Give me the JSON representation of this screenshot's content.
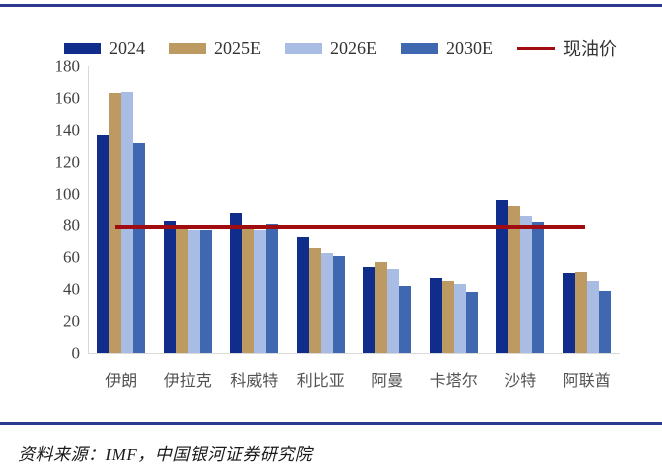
{
  "source_note": {
    "text": "资料来源：IMF，中国银河证券研究院"
  },
  "colors": {
    "rule_navy": "#2b3a8e",
    "axis_gray": "#d9d9d9",
    "tick_text": "#404040",
    "category_text": "#525252",
    "legend_text": "#333333"
  },
  "chart_data": {
    "type": "bar",
    "title": "",
    "xlabel": "",
    "ylabel": "",
    "categories": [
      "伊朗",
      "伊拉克",
      "科威特",
      "利比亚",
      "阿曼",
      "卡塔尔",
      "沙特",
      "阿联酋"
    ],
    "series": [
      {
        "name": "2024",
        "color": "#102d8c",
        "values": [
          137,
          83,
          88,
          73,
          54,
          47,
          96,
          50
        ]
      },
      {
        "name": "2025E",
        "color": "#be9a63",
        "values": [
          163,
          78,
          78,
          66,
          57,
          45,
          92,
          51
        ]
      },
      {
        "name": "2026E",
        "color": "#a9bde4",
        "values": [
          164,
          77,
          77,
          63,
          53,
          43,
          86,
          45
        ]
      },
      {
        "name": "2030E",
        "color": "#3f68b1",
        "values": [
          132,
          77,
          81,
          61,
          42,
          38,
          82,
          39
        ]
      }
    ],
    "reference_line": {
      "name": "现油价",
      "color": "#a00c10",
      "value": 79
    },
    "ylim": [
      0,
      180
    ],
    "yticks": [
      0,
      20,
      40,
      60,
      80,
      100,
      120,
      140,
      160,
      180
    ],
    "grid": false,
    "legend_position": "top"
  }
}
